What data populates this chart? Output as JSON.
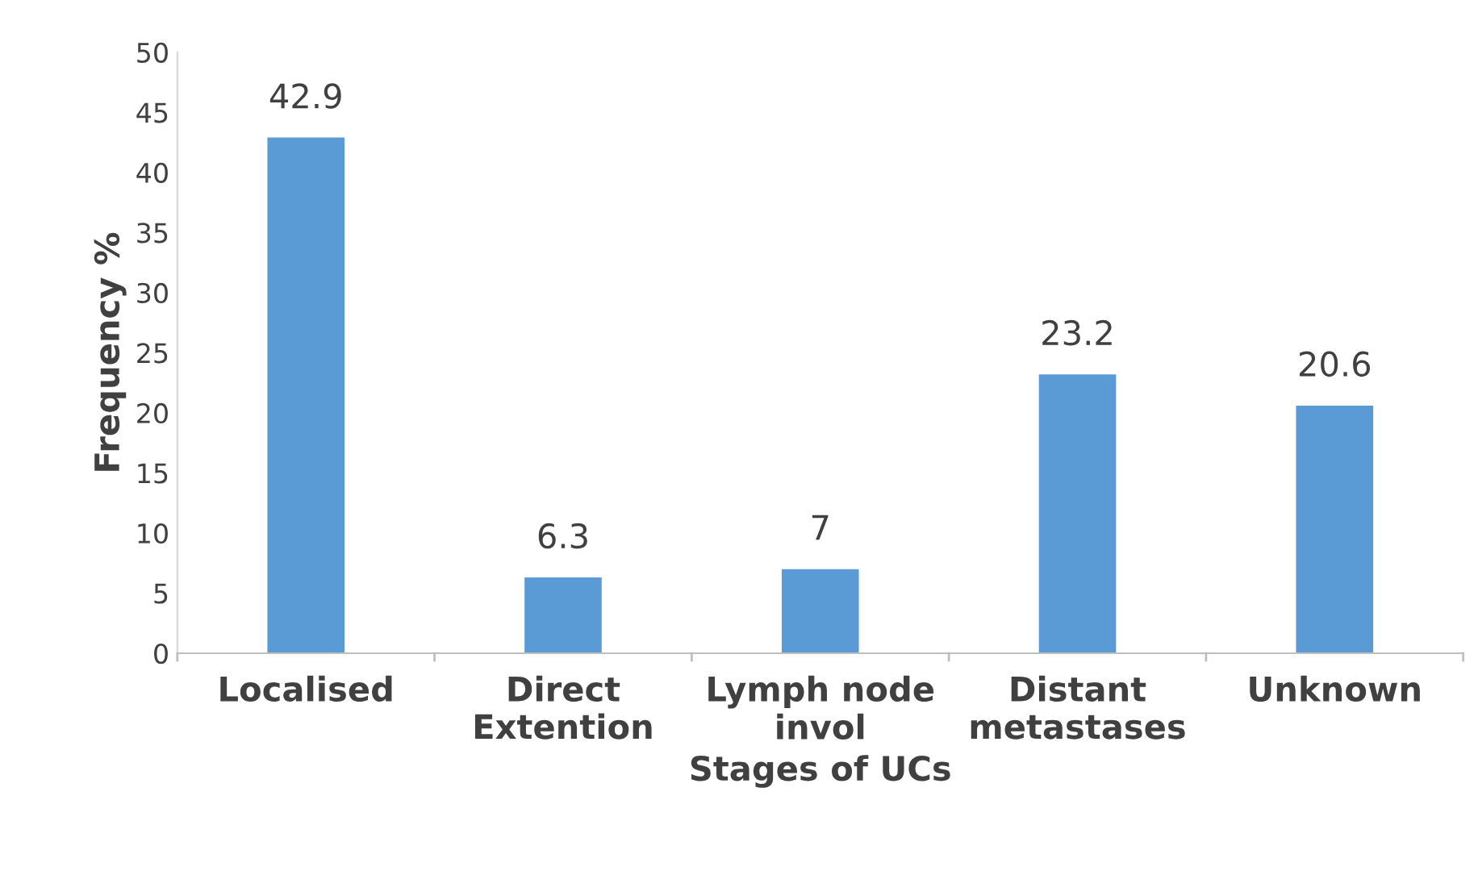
{
  "chart_data": {
    "type": "bar",
    "xlabel": "Stages of UCs",
    "ylabel": "Frequency %",
    "categories": [
      "Localised",
      "Direct\nExtention",
      "Lymph node\ninvol",
      "Distant\nmetastases",
      "Unknown"
    ],
    "values": [
      42.9,
      6.3,
      7,
      23.2,
      20.6
    ],
    "color": "#5b9bd5",
    "ylim": [
      0,
      50
    ],
    "yticks": [
      0,
      5,
      10,
      15,
      20,
      25,
      30,
      35,
      40,
      45,
      50
    ],
    "grid": false,
    "data_labels": true
  }
}
